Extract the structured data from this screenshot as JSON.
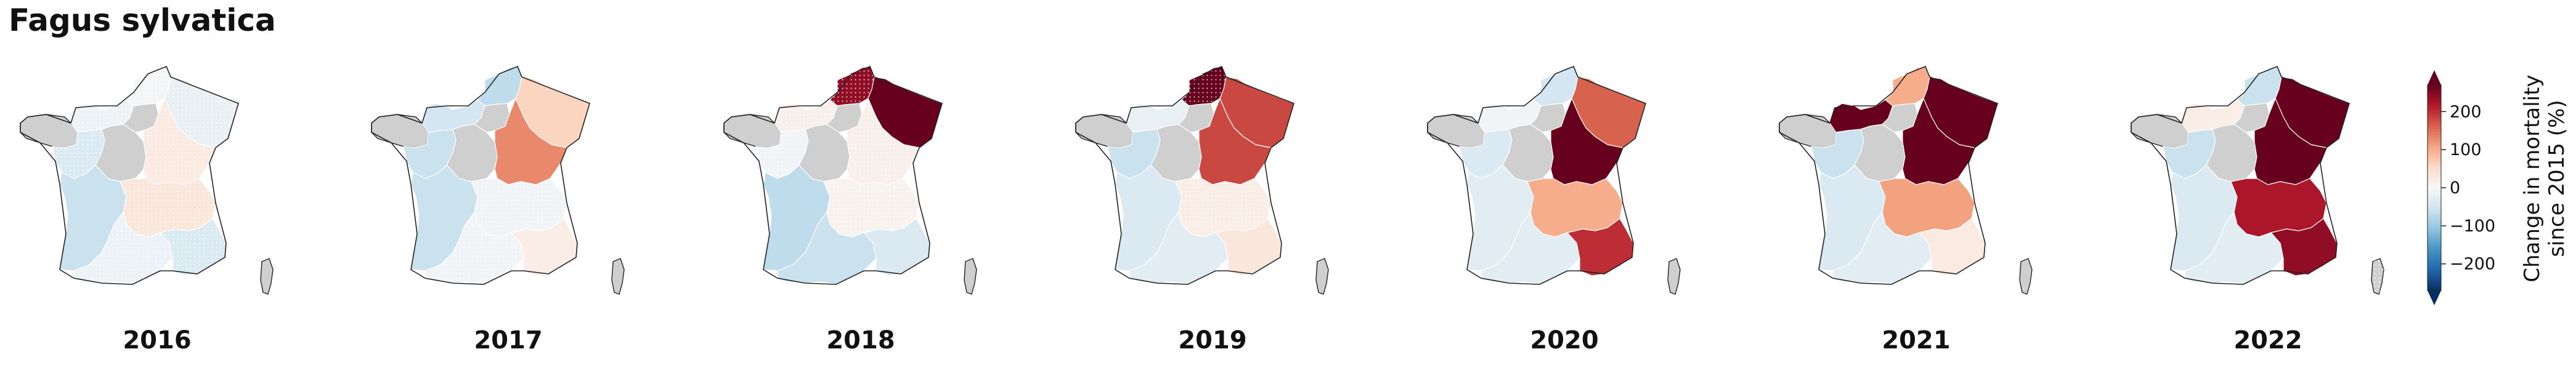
{
  "title": "Fagus sylvatica",
  "colorbar": {
    "label_line1": "Change in mortality",
    "label_line2": "since 2015 (%)",
    "min": -270,
    "max": 270,
    "ticks": [
      200,
      100,
      0,
      -100,
      -200
    ],
    "tick_labels": [
      "200",
      "100",
      "0",
      "−100",
      "−200"
    ],
    "colormap": "RdBu_r",
    "colors": [
      "#053061",
      "#2166ac",
      "#4393c3",
      "#92c5de",
      "#d1e5f0",
      "#f7f7f7",
      "#fddbc7",
      "#f4a582",
      "#d6604d",
      "#b2182b",
      "#67001f"
    ],
    "no_data_color": "#cfcfcf"
  },
  "regions": [
    "Brittany",
    "Normandy",
    "Hauts-de-France",
    "Grand Est",
    "Pays de la Loire",
    "Centre-Val de Loire",
    "Ile-de-France",
    "Bourgogne-Franche-Comte",
    "Nouvelle-Aquitaine",
    "Auvergne-Rhone-Alpes",
    "Occitanie",
    "Provence-Alpes-Cote d'Azur",
    "Corsica"
  ],
  "panels": [
    {
      "year": "2016",
      "values": [
        null,
        -15,
        -5,
        -20,
        -40,
        null,
        null,
        25,
        -60,
        30,
        -15,
        -40,
        null
      ],
      "hatched": [
        false,
        true,
        true,
        true,
        true,
        false,
        false,
        true,
        false,
        true,
        true,
        true,
        false
      ]
    },
    {
      "year": "2017",
      "values": [
        null,
        -50,
        -70,
        60,
        -60,
        null,
        null,
        130,
        -60,
        -10,
        -10,
        20,
        null
      ],
      "hatched": [
        false,
        false,
        false,
        false,
        false,
        false,
        false,
        false,
        false,
        true,
        true,
        false,
        false
      ]
    },
    {
      "year": "2018",
      "values": [
        null,
        15,
        240,
        300,
        -10,
        null,
        null,
        15,
        -70,
        10,
        -60,
        -40,
        null
      ],
      "hatched": [
        false,
        true,
        true,
        false,
        true,
        false,
        false,
        true,
        false,
        true,
        false,
        false,
        false
      ]
    },
    {
      "year": "2019",
      "values": [
        null,
        -20,
        300,
        180,
        -60,
        null,
        null,
        180,
        -40,
        20,
        -30,
        30,
        null
      ],
      "hatched": [
        false,
        false,
        true,
        false,
        false,
        false,
        false,
        false,
        false,
        true,
        false,
        false,
        false
      ]
    },
    {
      "year": "2020",
      "values": [
        null,
        -10,
        -50,
        160,
        -40,
        null,
        null,
        300,
        -30,
        100,
        -30,
        200,
        null
      ],
      "hatched": [
        false,
        false,
        false,
        false,
        false,
        false,
        false,
        false,
        false,
        false,
        false,
        false,
        false
      ]
    },
    {
      "year": "2021",
      "values": [
        null,
        300,
        100,
        300,
        -60,
        null,
        null,
        300,
        -40,
        110,
        -30,
        25,
        null
      ],
      "hatched": [
        false,
        false,
        false,
        false,
        false,
        false,
        false,
        false,
        false,
        false,
        false,
        false,
        false
      ]
    },
    {
      "year": "2022",
      "values": [
        null,
        20,
        -60,
        300,
        -60,
        null,
        null,
        300,
        -40,
        220,
        -30,
        240,
        null
      ],
      "hatched": [
        false,
        false,
        false,
        false,
        false,
        false,
        false,
        false,
        false,
        false,
        false,
        false,
        true
      ]
    }
  ]
}
